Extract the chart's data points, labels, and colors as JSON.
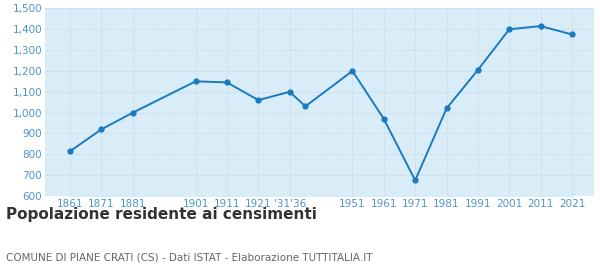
{
  "years": [
    1861,
    1871,
    1881,
    1901,
    1911,
    1921,
    1931,
    1936,
    1951,
    1961,
    1971,
    1981,
    1991,
    2001,
    2011,
    2021
  ],
  "population": [
    815,
    920,
    1000,
    1150,
    1145,
    1060,
    1100,
    1030,
    1200,
    970,
    675,
    1020,
    1205,
    1400,
    1415,
    1375
  ],
  "xtick_positions": [
    1861,
    1871,
    1881,
    1901,
    1911,
    1921,
    1931,
    1951,
    1961,
    1971,
    1981,
    1991,
    2001,
    2011,
    2021
  ],
  "xtick_labels": [
    "1861",
    "1871",
    "1881",
    "1901",
    "1911",
    "1921",
    "'31'36",
    "1951",
    "1961",
    "1971",
    "1981",
    "1991",
    "2001",
    "2011",
    "2021"
  ],
  "line_color": "#1b7abf",
  "fill_color": "#d9edf8",
  "marker_color": "#1b7abf",
  "background_color": "#ffffff",
  "grid_color": "#c8dce8",
  "title": "Popolazione residente ai censimenti",
  "subtitle": "COMUNE DI PIANE CRATI (CS) - Dati ISTAT - Elaborazione TUTTITALIA.IT",
  "ylim": [
    600,
    1500
  ],
  "yticks": [
    600,
    700,
    800,
    900,
    1000,
    1100,
    1200,
    1300,
    1400,
    1500
  ],
  "xlim_left": 1853,
  "xlim_right": 2028,
  "title_fontsize": 11,
  "subtitle_fontsize": 7.5,
  "title_color": "#333333",
  "subtitle_color": "#666666",
  "tick_label_color": "#4d94cc",
  "tick_fontsize": 7.5
}
